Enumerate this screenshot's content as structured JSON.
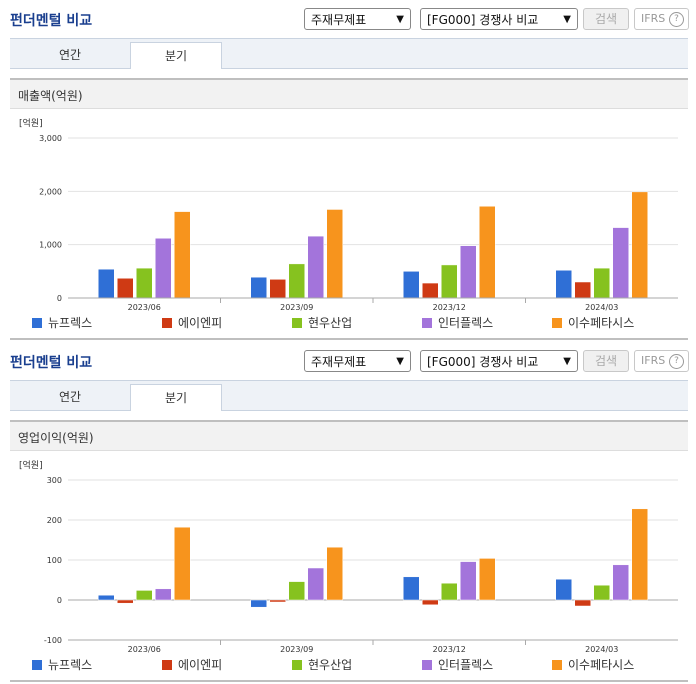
{
  "panels": [
    {
      "title": "펀더멘털 비교",
      "select1": "주재무제표",
      "select2": "[FG000] 경쟁사 비교",
      "search_label": "검색",
      "ifrs_label": "IFRS",
      "ifrs_help": "?",
      "tabs": [
        "연간",
        "분기"
      ],
      "active_tab": 1,
      "chart_title": "매출액(억원)",
      "unit": "[억원]"
    },
    {
      "title": "펀더멘털 비교",
      "select1": "주재무제표",
      "select2": "[FG000] 경쟁사 비교",
      "search_label": "검색",
      "ifrs_label": "IFRS",
      "ifrs_help": "?",
      "tabs": [
        "연간",
        "분기"
      ],
      "active_tab": 1,
      "chart_title": "영업이익(억원)",
      "unit": "[억원]"
    }
  ],
  "chart_data": [
    {
      "type": "bar",
      "title": "매출액(억원)",
      "ylabel": "[억원]",
      "categories": [
        "2023/06",
        "2023/09",
        "2023/12",
        "2024/03"
      ],
      "yticks": [
        "3,000",
        "2,000",
        "1,000",
        "0"
      ],
      "ylim": [
        0,
        3000
      ],
      "grid": true,
      "legend_position": "bottom",
      "series": [
        {
          "name": "뉴프렉스",
          "color": "#2f6fd6",
          "values": [
            540,
            390,
            500,
            520
          ]
        },
        {
          "name": "에이엔피",
          "color": "#cf3a14",
          "values": [
            370,
            350,
            280,
            300
          ]
        },
        {
          "name": "현우산업",
          "color": "#86c21f",
          "values": [
            560,
            640,
            620,
            560
          ]
        },
        {
          "name": "인터플렉스",
          "color": "#a374db",
          "values": [
            1120,
            1160,
            980,
            1320
          ]
        },
        {
          "name": "이수페타시스",
          "color": "#f7941d",
          "values": [
            1620,
            1660,
            1720,
            1990
          ]
        }
      ]
    },
    {
      "type": "bar",
      "title": "영업이익(억원)",
      "ylabel": "[억원]",
      "categories": [
        "2023/06",
        "2023/09",
        "2023/12",
        "2024/03"
      ],
      "yticks": [
        "300",
        "200",
        "100",
        "0",
        "-100"
      ],
      "ylim": [
        -100,
        300
      ],
      "grid": true,
      "legend_position": "bottom",
      "series": [
        {
          "name": "뉴프렉스",
          "color": "#2f6fd6",
          "values": [
            12,
            -18,
            58,
            52
          ]
        },
        {
          "name": "에이엔피",
          "color": "#cf3a14",
          "values": [
            -8,
            -5,
            -12,
            -15
          ]
        },
        {
          "name": "현우산업",
          "color": "#86c21f",
          "values": [
            24,
            46,
            42,
            37
          ]
        },
        {
          "name": "인터플렉스",
          "color": "#a374db",
          "values": [
            28,
            80,
            96,
            88
          ]
        },
        {
          "name": "이수페타시스",
          "color": "#f7941d",
          "values": [
            182,
            132,
            104,
            228
          ]
        }
      ]
    }
  ]
}
